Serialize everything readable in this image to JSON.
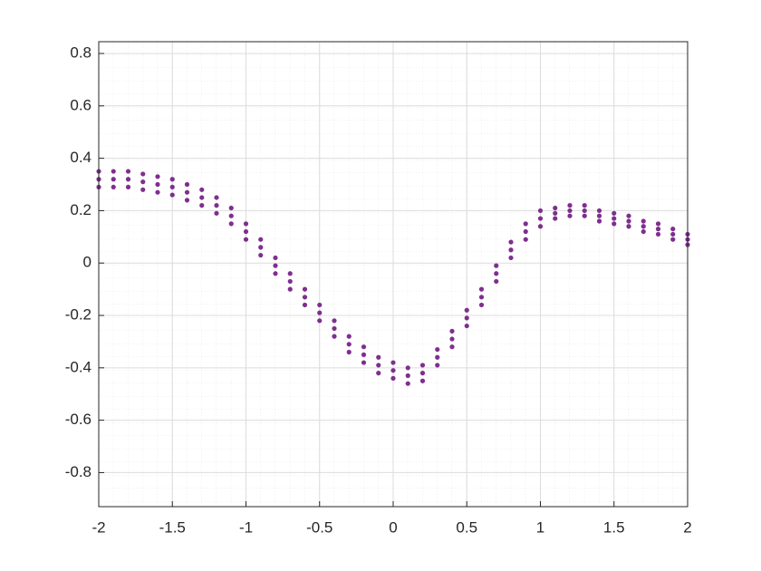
{
  "chart_data": {
    "type": "scatter",
    "color": "#7e2f8e",
    "grid": true,
    "minor_grid": true,
    "xlim": [
      -2,
      2
    ],
    "xticks": [
      -2,
      -1.5,
      -1,
      -0.5,
      0,
      0.5,
      1,
      1.5,
      2
    ],
    "ylim": [
      -0.93,
      0.845
    ],
    "yticks": [
      -0.8,
      -0.6,
      -0.4,
      -0.2,
      0,
      0.2,
      0.4,
      0.6,
      0.8
    ],
    "x": [
      -2,
      -2,
      -2,
      -1.9,
      -1.9,
      -1.9,
      -1.8,
      -1.8,
      -1.8,
      -1.7,
      -1.7,
      -1.7,
      -1.6,
      -1.6,
      -1.6,
      -1.5,
      -1.5,
      -1.5,
      -1.4,
      -1.4,
      -1.4,
      -1.3,
      -1.3,
      -1.3,
      -1.2,
      -1.2,
      -1.2,
      -1.1,
      -1.1,
      -1.1,
      -1,
      -1,
      -1,
      -0.9,
      -0.9,
      -0.9,
      -0.8,
      -0.8,
      -0.8,
      -0.7,
      -0.7,
      -0.7,
      -0.6,
      -0.6,
      -0.6,
      -0.5,
      -0.5,
      -0.5,
      -0.4,
      -0.4,
      -0.4,
      -0.3,
      -0.3,
      -0.3,
      -0.2,
      -0.2,
      -0.2,
      -0.1,
      -0.1,
      -0.1,
      0,
      0,
      0,
      0.1,
      0.1,
      0.1,
      0.2,
      0.2,
      0.2,
      0.3,
      0.3,
      0.3,
      0.4,
      0.4,
      0.4,
      0.5,
      0.5,
      0.5,
      0.6,
      0.6,
      0.6,
      0.7,
      0.7,
      0.7,
      0.8,
      0.8,
      0.8,
      0.9,
      0.9,
      0.9,
      1,
      1,
      1,
      1.1,
      1.1,
      1.1,
      1.2,
      1.2,
      1.2,
      1.3,
      1.3,
      1.3,
      1.4,
      1.4,
      1.4,
      1.5,
      1.5,
      1.5,
      1.6,
      1.6,
      1.6,
      1.7,
      1.7,
      1.7,
      1.8,
      1.8,
      1.8,
      1.9,
      1.9,
      1.9,
      2,
      2,
      2
    ],
    "y": [
      0.29,
      0.32,
      0.35,
      0.29,
      0.32,
      0.35,
      0.29,
      0.32,
      0.35,
      0.28,
      0.31,
      0.34,
      0.27,
      0.3,
      0.33,
      0.26,
      0.29,
      0.32,
      0.24,
      0.27,
      0.3,
      0.22,
      0.25,
      0.28,
      0.19,
      0.22,
      0.25,
      0.15,
      0.18,
      0.21,
      0.09,
      0.12,
      0.15,
      0.03,
      0.06,
      0.09,
      -0.04,
      -0.01,
      0.02,
      -0.1,
      -0.07,
      -0.04,
      -0.16,
      -0.13,
      -0.1,
      -0.22,
      -0.19,
      -0.16,
      -0.28,
      -0.25,
      -0.22,
      -0.34,
      -0.31,
      -0.28,
      -0.38,
      -0.35,
      -0.32,
      -0.42,
      -0.39,
      -0.36,
      -0.44,
      -0.41,
      -0.38,
      -0.46,
      -0.43,
      -0.4,
      -0.45,
      -0.42,
      -0.39,
      -0.39,
      -0.36,
      -0.33,
      -0.32,
      -0.29,
      -0.26,
      -0.24,
      -0.21,
      -0.18,
      -0.16,
      -0.13,
      -0.1,
      -0.07,
      -0.04,
      -0.01,
      0.02,
      0.05,
      0.08,
      0.09,
      0.12,
      0.15,
      0.14,
      0.17,
      0.2,
      0.17,
      0.19,
      0.21,
      0.18,
      0.2,
      0.22,
      0.18,
      0.2,
      0.22,
      0.16,
      0.18,
      0.2,
      0.15,
      0.17,
      0.19,
      0.14,
      0.16,
      0.18,
      0.12,
      0.14,
      0.16,
      0.11,
      0.13,
      0.15,
      0.09,
      0.11,
      0.13,
      0.07,
      0.09,
      0.11
    ]
  }
}
